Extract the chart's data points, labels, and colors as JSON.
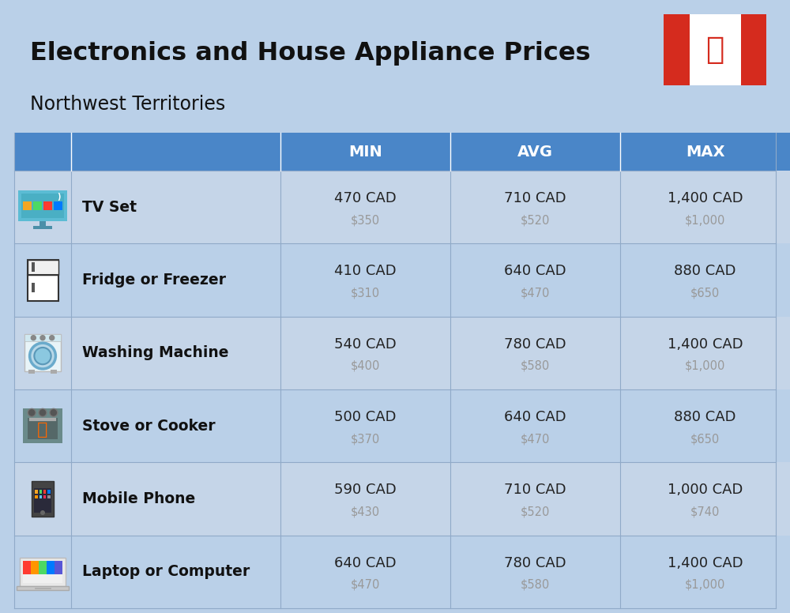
{
  "title_display": "Electronics and House Appliance Prices",
  "subtitle": "Northwest Territories",
  "bg_color": "#bad0e8",
  "header_color": "#4a86c8",
  "header_text_color": "#ffffff",
  "row_bg_even": "#c5d5e8",
  "row_bg_odd": "#bad0e8",
  "item_name_color": "#111111",
  "cad_price_color": "#222222",
  "usd_price_color": "#999999",
  "divider_color": "#90aac8",
  "columns": [
    "MIN",
    "AVG",
    "MAX"
  ],
  "rows": [
    {
      "name": "TV Set",
      "min_cad": "470 CAD",
      "min_usd": "$350",
      "avg_cad": "710 CAD",
      "avg_usd": "$520",
      "max_cad": "1,400 CAD",
      "max_usd": "$1,000"
    },
    {
      "name": "Fridge or Freezer",
      "min_cad": "410 CAD",
      "min_usd": "$310",
      "avg_cad": "640 CAD",
      "avg_usd": "$470",
      "max_cad": "880 CAD",
      "max_usd": "$650"
    },
    {
      "name": "Washing Machine",
      "min_cad": "540 CAD",
      "min_usd": "$400",
      "avg_cad": "780 CAD",
      "avg_usd": "$580",
      "max_cad": "1,400 CAD",
      "max_usd": "$1,000"
    },
    {
      "name": "Stove or Cooker",
      "min_cad": "500 CAD",
      "min_usd": "$370",
      "avg_cad": "640 CAD",
      "avg_usd": "$470",
      "max_cad": "880 CAD",
      "max_usd": "$650"
    },
    {
      "name": "Mobile Phone",
      "min_cad": "590 CAD",
      "min_usd": "$430",
      "avg_cad": "710 CAD",
      "avg_usd": "$520",
      "max_cad": "1,000 CAD",
      "max_usd": "$740"
    },
    {
      "name": "Laptop or Computer",
      "min_cad": "640 CAD",
      "min_usd": "$470",
      "avg_cad": "780 CAD",
      "avg_usd": "$580",
      "max_cad": "1,400 CAD",
      "max_usd": "$1,000"
    }
  ]
}
